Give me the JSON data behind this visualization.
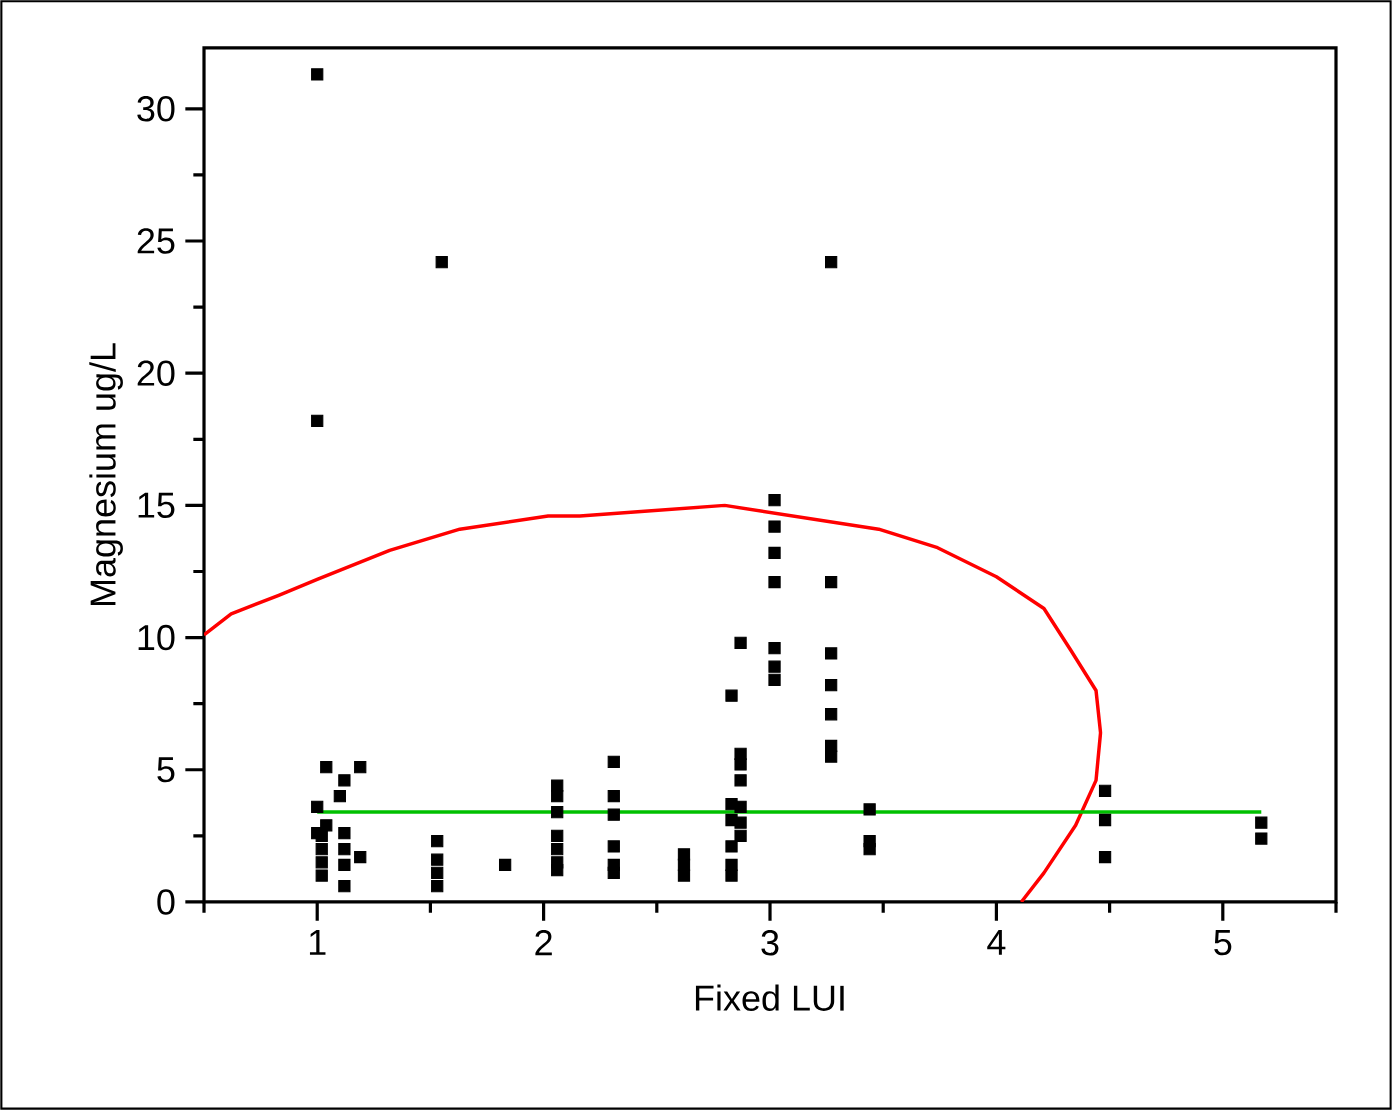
{
  "chart_data": {
    "type": "scatter",
    "xlabel": "Fixed LUI",
    "ylabel": "Magnesium ug/L",
    "xlim": [
      0.5,
      5.5
    ],
    "ylim": [
      0,
      32.3
    ],
    "xticks": [
      {
        "value": 0.5,
        "label": null
      },
      1,
      {
        "value": 1.5,
        "label": null
      },
      2,
      {
        "value": 2.5,
        "label": null
      },
      3,
      {
        "value": 3.5,
        "label": null
      },
      4,
      {
        "value": 4.5,
        "label": null
      },
      5,
      {
        "value": 5.5,
        "label": null
      }
    ],
    "yticks": [
      0,
      {
        "value": 2.5,
        "label": null
      },
      5,
      {
        "value": 7.5,
        "label": null
      },
      10,
      {
        "value": 12.5,
        "label": null
      },
      15,
      {
        "value": 17.5,
        "label": null
      },
      20,
      {
        "value": 22.5,
        "label": null
      },
      25,
      {
        "value": 27.5,
        "label": null
      },
      30
    ],
    "grid": false,
    "series": [
      {
        "marker": "square",
        "color": "#000000",
        "x": [
          1.0,
          1.55,
          3.27,
          1.0,
          1.04,
          1.19,
          1.12,
          1.1,
          1.0,
          1.04,
          1.02,
          1.02,
          1.02,
          1.02,
          1.0,
          1.12,
          1.12,
          1.12,
          1.12,
          1.19,
          1.53,
          1.53,
          1.53,
          1.53,
          1.83,
          2.06,
          2.06,
          2.06,
          2.06,
          2.06,
          2.06,
          2.06,
          2.31,
          2.31,
          2.31,
          2.31,
          2.31,
          2.31,
          2.62,
          2.62,
          2.62,
          2.83,
          2.83,
          2.83,
          2.83,
          2.83,
          2.83,
          2.87,
          2.87,
          2.87,
          2.87,
          2.87,
          2.87,
          2.87,
          3.02,
          3.02,
          3.02,
          3.02,
          3.02,
          3.02,
          3.02,
          3.27,
          3.27,
          3.27,
          3.27,
          3.27,
          3.27,
          3.44,
          3.44,
          3.44,
          4.48,
          4.48,
          4.48,
          5.17,
          5.17
        ],
        "values": [
          31.3,
          24.2,
          24.2,
          18.2,
          5.1,
          5.1,
          4.6,
          4.0,
          3.6,
          2.9,
          2.5,
          2.0,
          1.5,
          1.0,
          2.6,
          2.6,
          2.0,
          1.4,
          0.6,
          1.7,
          2.3,
          1.6,
          1.1,
          0.6,
          1.4,
          4.4,
          4.0,
          3.4,
          2.5,
          2.0,
          1.5,
          1.2,
          5.3,
          4.0,
          3.3,
          2.1,
          1.4,
          1.1,
          1.8,
          1.4,
          1.0,
          7.8,
          3.7,
          3.1,
          2.1,
          1.4,
          1.0,
          9.8,
          5.6,
          5.2,
          4.6,
          3.6,
          3.0,
          2.5,
          15.2,
          14.2,
          13.2,
          12.1,
          9.6,
          8.9,
          8.4,
          12.1,
          9.4,
          8.2,
          7.1,
          5.9,
          5.5,
          3.5,
          2.3,
          2.0,
          4.2,
          3.1,
          1.7,
          3.0,
          2.4
        ]
      },
      {
        "type": "line",
        "marker": "none",
        "color": "#ff0000",
        "x": [
          0.5,
          0.62,
          0.83,
          1.0,
          1.32,
          1.63,
          2.02,
          2.16,
          2.8,
          3.48,
          3.74,
          4.0,
          4.21,
          4.33,
          4.44,
          4.46,
          4.44,
          4.35,
          4.21,
          4.11
        ],
        "values": [
          10.1,
          10.9,
          11.6,
          12.2,
          13.3,
          14.1,
          14.6,
          14.6,
          15.0,
          14.1,
          13.4,
          12.3,
          11.1,
          9.5,
          8.0,
          6.4,
          4.6,
          2.9,
          1.1,
          0.0
        ]
      },
      {
        "type": "line",
        "marker": "none",
        "color": "#00c000",
        "x": [
          1.0,
          5.17
        ],
        "values": [
          3.4,
          3.4
        ]
      }
    ]
  }
}
